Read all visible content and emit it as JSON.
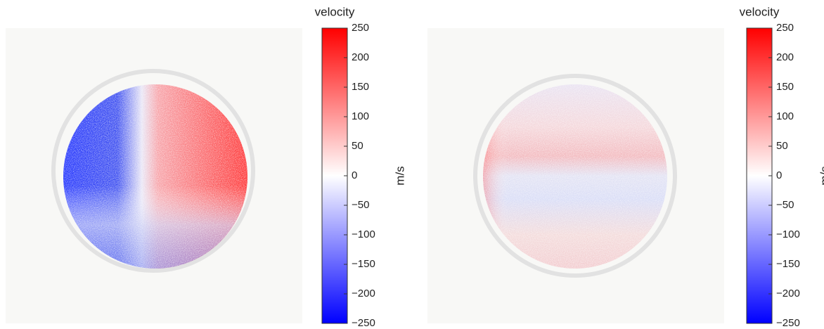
{
  "chart_data": [
    {
      "type": "colormap",
      "colorbar_title": "velocity",
      "colorbar_label": "m/s",
      "clim": [
        -250,
        250
      ],
      "cticks": [
        {
          "value": -250,
          "label": "−250"
        },
        {
          "value": -200,
          "label": "−200"
        },
        {
          "value": -150,
          "label": "−150"
        },
        {
          "value": -100,
          "label": "−100"
        },
        {
          "value": -50,
          "label": "−50"
        },
        0,
        50,
        100,
        150,
        200,
        250
      ],
      "colors": [
        "#0000ff",
        "#ffffff",
        "#ff0000"
      ]
    },
    {
      "type": "colormap",
      "colorbar_title": "velocity",
      "colorbar_label": "m/s",
      "clim": [
        -250,
        250
      ],
      "cticks": [
        {
          "value": -250,
          "label": "−250"
        },
        {
          "value": -200,
          "label": "−200"
        },
        {
          "value": -150,
          "label": "−150"
        },
        {
          "value": -100,
          "label": "−100"
        },
        {
          "value": -50,
          "label": "−50"
        },
        0,
        50,
        100,
        150,
        200,
        250
      ],
      "colors": [
        "#0000ff",
        "#ffffff",
        "#ff0000"
      ]
    }
  ]
}
